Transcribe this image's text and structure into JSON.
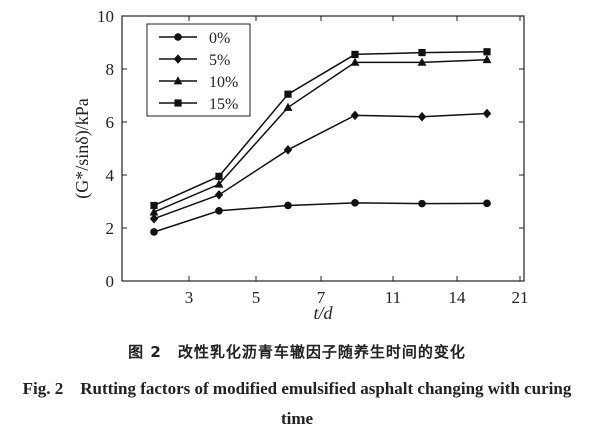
{
  "chart_data": {
    "type": "line",
    "xlabel": "t/d",
    "ylabel": "(G*/sinδ)/kPa",
    "x_ticks": [
      3,
      5,
      7,
      11,
      14,
      21
    ],
    "y_ticks": [
      0,
      2,
      4,
      6,
      8,
      10
    ],
    "ylim": [
      0,
      10
    ],
    "grid": false,
    "legend_position": "top-left",
    "x": [
      1,
      3,
      5,
      7,
      11,
      14
    ],
    "series": [
      {
        "name": "0%",
        "marker": "circle",
        "values": [
          1.85,
          2.65,
          2.85,
          2.95,
          2.92,
          2.93
        ]
      },
      {
        "name": "5%",
        "marker": "diamond",
        "values": [
          2.35,
          3.25,
          4.95,
          6.25,
          6.2,
          6.32
        ]
      },
      {
        "name": "10%",
        "marker": "triangle",
        "values": [
          2.6,
          3.65,
          6.55,
          8.25,
          8.25,
          8.35
        ]
      },
      {
        "name": "15%",
        "marker": "square",
        "values": [
          2.85,
          3.95,
          7.05,
          8.55,
          8.62,
          8.65
        ]
      }
    ]
  },
  "caption": {
    "cn": "图 2　改性乳化沥青车辙因子随养生时间的变化",
    "en": "Fig. 2　Rutting factors of modified emulsified asphalt changing with curing time"
  }
}
